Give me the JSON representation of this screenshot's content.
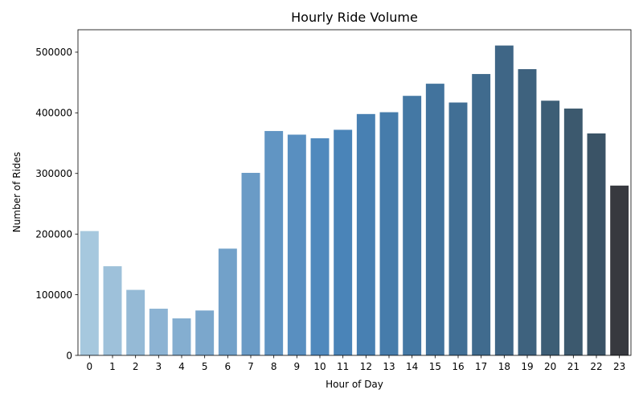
{
  "chart_data": {
    "type": "bar",
    "title": "Hourly Ride Volume",
    "xlabel": "Hour of Day",
    "ylabel": "Number of Rides",
    "categories": [
      "0",
      "1",
      "2",
      "3",
      "4",
      "5",
      "6",
      "7",
      "8",
      "9",
      "10",
      "11",
      "12",
      "13",
      "14",
      "15",
      "16",
      "17",
      "18",
      "19",
      "20",
      "21",
      "22",
      "23"
    ],
    "values": [
      205000,
      147000,
      108000,
      77000,
      61000,
      74000,
      176000,
      301000,
      370000,
      364000,
      358000,
      372000,
      398000,
      401000,
      428000,
      448000,
      417000,
      464000,
      511000,
      472000,
      420000,
      407000,
      366000,
      280000
    ],
    "ylim": [
      0,
      537000
    ],
    "yticks": [
      0,
      100000,
      200000,
      300000,
      400000,
      500000
    ],
    "grid": false,
    "colors": [
      "#a6c8de",
      "#9ec1da",
      "#95bad6",
      "#8cb3d3",
      "#84aed0",
      "#7ba7cc",
      "#72a1c9",
      "#6a9bc6",
      "#6195c3",
      "#598fc0",
      "#5089bd",
      "#4a84b8",
      "#4880b2",
      "#467cab",
      "#4478a4",
      "#42739d",
      "#416f95",
      "#406b8e",
      "#3f6686",
      "#3e627e",
      "#3d5e76",
      "#3c596e",
      "#3a5366",
      "#37393f"
    ]
  }
}
